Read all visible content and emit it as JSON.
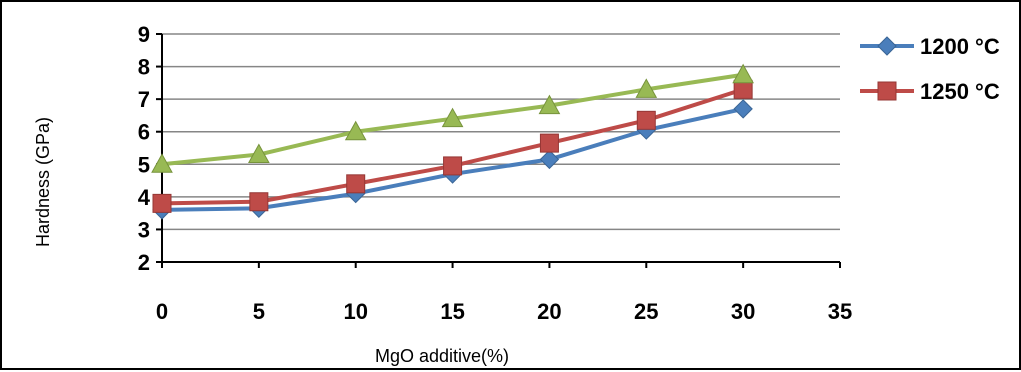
{
  "chart_data": {
    "type": "line",
    "title": "",
    "xlabel": "MgO additive(%)",
    "ylabel": "Hardness (GPa)",
    "xlim": [
      0,
      35
    ],
    "ylim": [
      2,
      9
    ],
    "xticks": [
      0,
      5,
      10,
      15,
      20,
      25,
      30,
      35
    ],
    "yticks": [
      2,
      3,
      4,
      5,
      6,
      7,
      8,
      9
    ],
    "grid": {
      "horizontal": true,
      "vertical": false
    },
    "legend_position": "right",
    "x": [
      0,
      5,
      10,
      15,
      20,
      25,
      30
    ],
    "series": [
      {
        "name": "1200 °C",
        "values": [
          3.6,
          3.65,
          4.1,
          4.7,
          5.15,
          6.05,
          6.7
        ],
        "color": "#4A7EBB",
        "marker": "diamond"
      },
      {
        "name": "1250 °C",
        "values": [
          3.8,
          3.85,
          4.4,
          4.95,
          5.65,
          6.35,
          7.3
        ],
        "color": "#BE4B48",
        "marker": "square"
      },
      {
        "values": [
          5.0,
          5.3,
          6.0,
          6.4,
          6.8,
          7.3,
          7.75
        ],
        "color": "#98B954",
        "marker": "triangle"
      }
    ]
  }
}
